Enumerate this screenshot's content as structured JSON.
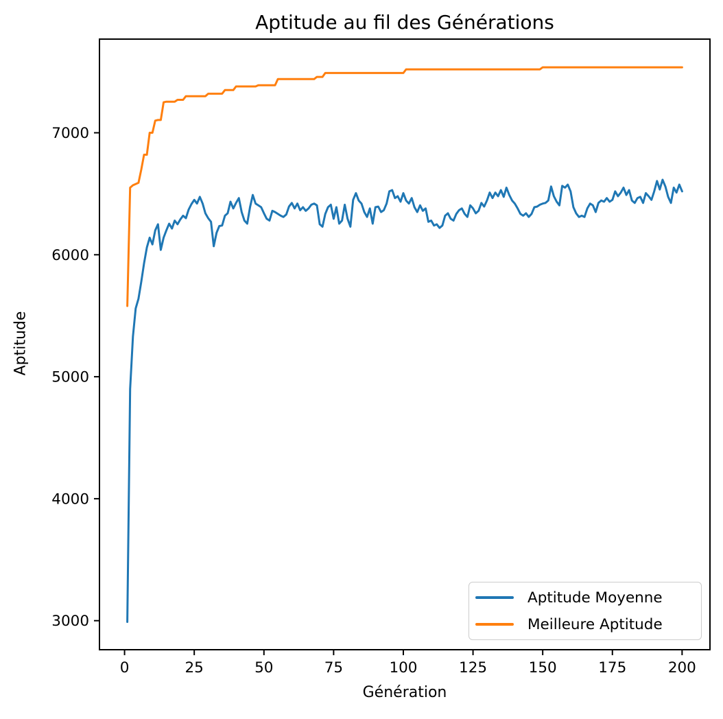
{
  "chart_data": {
    "type": "line",
    "title": "Aptitude au fil des Générations",
    "xlabel": "Génération",
    "ylabel": "Aptitude",
    "x_ticks": [
      0,
      25,
      50,
      75,
      100,
      125,
      150,
      175,
      200
    ],
    "y_ticks": [
      3000,
      4000,
      5000,
      6000,
      7000
    ],
    "xlim": [
      -9,
      210
    ],
    "ylim": [
      2762,
      7768
    ],
    "grid": false,
    "legend_position": "lower right",
    "axis_color": "#000000",
    "background_color": "#ffffff",
    "series": [
      {
        "name": "Aptitude Moyenne",
        "color": "#1f77b4",
        "x_start": 1,
        "x_step": 1,
        "values": [
          2990,
          4900,
          5330,
          5560,
          5640,
          5780,
          5930,
          6060,
          6140,
          6085,
          6200,
          6250,
          6040,
          6140,
          6200,
          6255,
          6215,
          6280,
          6250,
          6290,
          6320,
          6300,
          6370,
          6415,
          6450,
          6420,
          6475,
          6420,
          6340,
          6300,
          6270,
          6070,
          6180,
          6235,
          6240,
          6320,
          6340,
          6435,
          6380,
          6425,
          6465,
          6350,
          6280,
          6255,
          6390,
          6490,
          6420,
          6405,
          6390,
          6340,
          6295,
          6280,
          6360,
          6350,
          6335,
          6320,
          6310,
          6330,
          6395,
          6425,
          6380,
          6420,
          6365,
          6390,
          6360,
          6380,
          6410,
          6420,
          6405,
          6250,
          6230,
          6335,
          6390,
          6410,
          6295,
          6390,
          6255,
          6280,
          6410,
          6295,
          6230,
          6450,
          6505,
          6445,
          6420,
          6350,
          6310,
          6380,
          6255,
          6390,
          6395,
          6350,
          6365,
          6420,
          6520,
          6530,
          6465,
          6480,
          6435,
          6505,
          6445,
          6420,
          6465,
          6390,
          6350,
          6405,
          6360,
          6380,
          6270,
          6280,
          6240,
          6250,
          6220,
          6240,
          6320,
          6340,
          6295,
          6280,
          6335,
          6365,
          6380,
          6335,
          6310,
          6405,
          6380,
          6340,
          6360,
          6425,
          6395,
          6445,
          6510,
          6465,
          6510,
          6480,
          6530,
          6475,
          6550,
          6490,
          6445,
          6420,
          6380,
          6335,
          6320,
          6340,
          6310,
          6335,
          6390,
          6395,
          6410,
          6420,
          6425,
          6445,
          6560,
          6480,
          6435,
          6405,
          6565,
          6550,
          6575,
          6520,
          6390,
          6340,
          6310,
          6320,
          6310,
          6380,
          6420,
          6405,
          6350,
          6425,
          6445,
          6435,
          6465,
          6435,
          6450,
          6520,
          6480,
          6510,
          6550,
          6490,
          6530,
          6445,
          6425,
          6465,
          6475,
          6425,
          6505,
          6480,
          6450,
          6520,
          6605,
          6535,
          6615,
          6560,
          6475,
          6425,
          6550,
          6510,
          6575,
          6520
        ]
      },
      {
        "name": "Meilleure Aptitude",
        "color": "#ff7f0e",
        "x_start": 1,
        "x_step": 1,
        "values": [
          5580,
          6550,
          6570,
          6580,
          6590,
          6700,
          6820,
          6820,
          7000,
          7000,
          7100,
          7105,
          7105,
          7250,
          7255,
          7255,
          7255,
          7255,
          7270,
          7270,
          7270,
          7300,
          7300,
          7300,
          7300,
          7300,
          7300,
          7300,
          7300,
          7320,
          7320,
          7320,
          7320,
          7320,
          7320,
          7350,
          7350,
          7350,
          7350,
          7380,
          7380,
          7380,
          7380,
          7380,
          7380,
          7380,
          7380,
          7390,
          7390,
          7390,
          7390,
          7390,
          7390,
          7390,
          7440,
          7440,
          7440,
          7440,
          7440,
          7440,
          7440,
          7440,
          7440,
          7440,
          7440,
          7440,
          7440,
          7440,
          7458,
          7458,
          7458,
          7490,
          7490,
          7490,
          7490,
          7490,
          7490,
          7490,
          7490,
          7490,
          7490,
          7490,
          7490,
          7490,
          7490,
          7490,
          7490,
          7490,
          7490,
          7490,
          7490,
          7490,
          7490,
          7490,
          7490,
          7490,
          7490,
          7490,
          7490,
          7490,
          7520,
          7520,
          7520,
          7520,
          7520,
          7520,
          7520,
          7520,
          7520,
          7520,
          7520,
          7520,
          7520,
          7520,
          7520,
          7520,
          7520,
          7520,
          7520,
          7520,
          7520,
          7520,
          7520,
          7520,
          7520,
          7520,
          7520,
          7520,
          7520,
          7520,
          7520,
          7520,
          7520,
          7520,
          7520,
          7520,
          7520,
          7520,
          7520,
          7520,
          7520,
          7520,
          7520,
          7520,
          7520,
          7520,
          7520,
          7520,
          7520,
          7537,
          7537,
          7537,
          7537,
          7537,
          7537,
          7537,
          7537,
          7537,
          7537,
          7537,
          7537,
          7537,
          7537,
          7537,
          7537,
          7537,
          7537,
          7537,
          7537,
          7537,
          7537,
          7537,
          7537,
          7537,
          7537,
          7537,
          7537,
          7537,
          7537,
          7537,
          7537,
          7537,
          7537,
          7537,
          7537,
          7537,
          7537,
          7537,
          7537,
          7537,
          7537,
          7537,
          7537,
          7537,
          7537,
          7537,
          7537,
          7537,
          7537,
          7537
        ]
      }
    ]
  }
}
